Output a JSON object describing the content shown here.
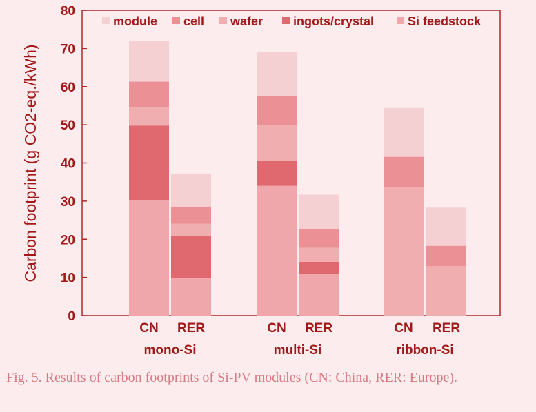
{
  "chart_data": {
    "type": "bar",
    "stacked": true,
    "ylabel": "Carbon footprint (g CO2-eq./kWh)",
    "ylim": [
      0,
      80
    ],
    "yticks": [
      "0",
      "10",
      "20",
      "30",
      "40",
      "50",
      "60",
      "70",
      "80"
    ],
    "groups": [
      "mono-Si",
      "multi-Si",
      "ribbon-Si"
    ],
    "categories": [
      "CN",
      "RER",
      "CN",
      "RER",
      "CN",
      "RER"
    ],
    "series": [
      {
        "name": "Si feedstock",
        "color": "#f0a7ab",
        "values": [
          30.3,
          9.8,
          34.0,
          11.0,
          0,
          0
        ]
      },
      {
        "name": "ingots/crystal",
        "color": "#e0686f",
        "values": [
          19.5,
          11.0,
          6.6,
          3.0,
          0,
          0
        ]
      },
      {
        "name": "wafer",
        "color": "#f0aeb1",
        "values": [
          4.7,
          3.3,
          9.2,
          3.8,
          33.7,
          13.0
        ]
      },
      {
        "name": "cell",
        "color": "#eb9195",
        "values": [
          6.8,
          4.4,
          7.7,
          4.8,
          7.9,
          5.3
        ]
      },
      {
        "name": "module",
        "color": "#f5d0d3",
        "values": [
          10.7,
          8.7,
          11.6,
          9.1,
          12.8,
          10.0
        ]
      }
    ],
    "legend_order": [
      "module",
      "cell",
      "wafer",
      "ingots/crystal",
      "Si feedstock"
    ],
    "legend_position": "top",
    "grid": false
  },
  "caption": "Fig. 5.  Results of carbon footprints of Si-PV modules (CN: China, RER: Europe)."
}
